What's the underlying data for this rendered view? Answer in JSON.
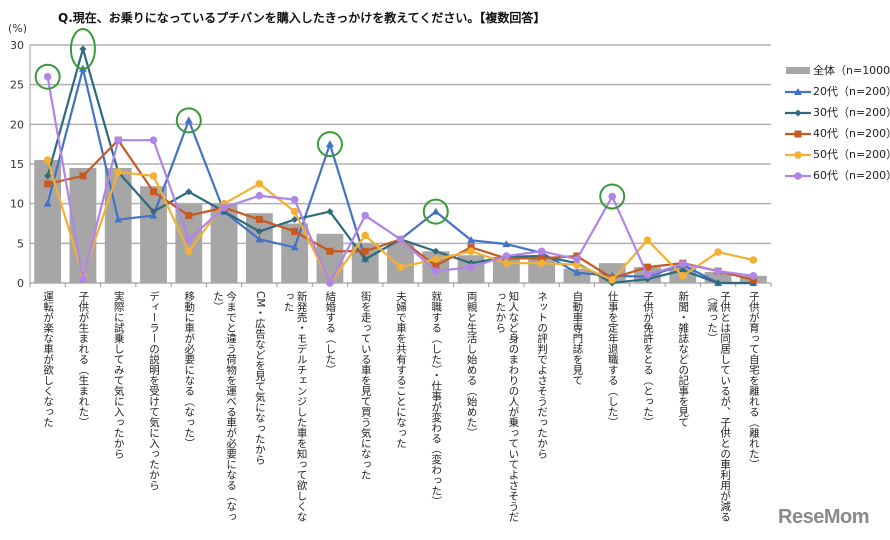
{
  "logo_text": "ReseMom",
  "chart_data": {
    "type": "bar+line",
    "title": "Q.現在、お乗りになっているプチバンを購入したきっかけを教えてください。【複数回答】",
    "ylabel": "(%)",
    "ylim": [
      0,
      30
    ],
    "yticks": [
      0,
      5,
      10,
      15,
      20,
      25,
      30
    ],
    "grid": true,
    "legend_position": "right",
    "categories": [
      "運転が楽な車が欲しくなった",
      "子供が生まれる（生まれた）",
      "実際に試乗してみて気に入ったから",
      "ディーラーの説明を受けて気に入ったから",
      "移動に車が必要になる（なった）",
      "今までと違う荷物を運べる車が必要になる（なった）",
      "CM・広告などを見て気になったから",
      "新発売・モデルチェンジした車を知って欲しくなった",
      "結婚する（した）",
      "街を走っている車を見て買う気になった",
      "夫婦で車を共有することになった",
      "就職する（した）・仕事が変わる（変わった）",
      "両親と生活し始める（始めた）",
      "知人など身のまわりの人が乗っていてよさそうだったから",
      "ネットの評判でよさそうだったから",
      "自動車専門誌を見て",
      "仕事を定年退職する（した）",
      "子供が免許をとる（とった）",
      "新聞・雑誌などの記事を見て",
      "子供とは同居しているが、子供との車利用が減る（減った）",
      "子供が育って自宅を離れる（離れた）"
    ],
    "series": [
      {
        "name": "全体（n=1000）",
        "type": "bar",
        "color": "#a6a6a6",
        "values": [
          15.5,
          14.5,
          14.5,
          12.2,
          10.0,
          10.0,
          8.8,
          7.5,
          6.2,
          5.0,
          5.0,
          4.0,
          3.5,
          3.3,
          3.3,
          1.8,
          2.5,
          2.0,
          2.0,
          1.4,
          0.9
        ]
      },
      {
        "name": "20代（n=200）",
        "type": "line",
        "marker": "triangle",
        "color": "#4472c4",
        "values": [
          10.0,
          27.0,
          8.0,
          8.5,
          20.5,
          9.0,
          5.5,
          4.5,
          17.5,
          3.0,
          5.5,
          9.0,
          5.4,
          4.9,
          3.8,
          1.3,
          0.9,
          0.8,
          2.3,
          0,
          0
        ]
      },
      {
        "name": "30代（n=200）",
        "type": "line",
        "marker": "diamond",
        "color": "#2e6b7e",
        "values": [
          13.5,
          29.5,
          14.0,
          9.0,
          11.5,
          9.0,
          6.5,
          8.0,
          9.0,
          3.0,
          5.5,
          4.0,
          2.5,
          3.3,
          3.4,
          2.5,
          0,
          0.5,
          1.6,
          0,
          0
        ]
      },
      {
        "name": "40代（n=200）",
        "type": "line",
        "marker": "square",
        "color": "#c55a24",
        "values": [
          12.5,
          13.5,
          18.0,
          11.5,
          8.5,
          9.5,
          8.0,
          6.5,
          4.0,
          4.0,
          5.5,
          2.2,
          4.5,
          3.1,
          3.1,
          3.4,
          0.6,
          2.0,
          2.5,
          1.5,
          0.4
        ]
      },
      {
        "name": "50代（n=200）",
        "type": "line",
        "marker": "circle",
        "color": "#f2b134",
        "values": [
          15.5,
          1.0,
          14.0,
          13.5,
          4.0,
          10.0,
          12.5,
          9.0,
          0,
          6.0,
          2.0,
          3.0,
          4.0,
          2.5,
          2.5,
          2.3,
          0.4,
          5.4,
          0.9,
          3.9,
          2.9
        ]
      },
      {
        "name": "60代（n=200）",
        "type": "line",
        "marker": "circle",
        "color": "#b085e8",
        "values": [
          26.0,
          0.5,
          18.0,
          18.0,
          5.5,
          9.5,
          11.0,
          10.5,
          0,
          8.5,
          5.5,
          1.5,
          2.0,
          3.4,
          4.0,
          3.0,
          10.9,
          1.0,
          2.4,
          1.5,
          0.9
        ]
      }
    ],
    "highlights": [
      {
        "category": "運転が楽な車が欲しくなった",
        "series": "60代（n=200）"
      },
      {
        "category": "子供が生まれる（生まれた）",
        "series": "30代（n=200）"
      },
      {
        "category": "移動に車が必要になる（なった）",
        "series": "20代（n=200）"
      },
      {
        "category": "結婚する（した）",
        "series": "20代（n=200）"
      },
      {
        "category": "就職する（した）・仕事が変わる（変わった）",
        "series": "20代（n=200）"
      },
      {
        "category": "仕事を定年退職する（した）",
        "series": "60代（n=200）"
      }
    ],
    "highlight_color": "#3a9a3a"
  }
}
